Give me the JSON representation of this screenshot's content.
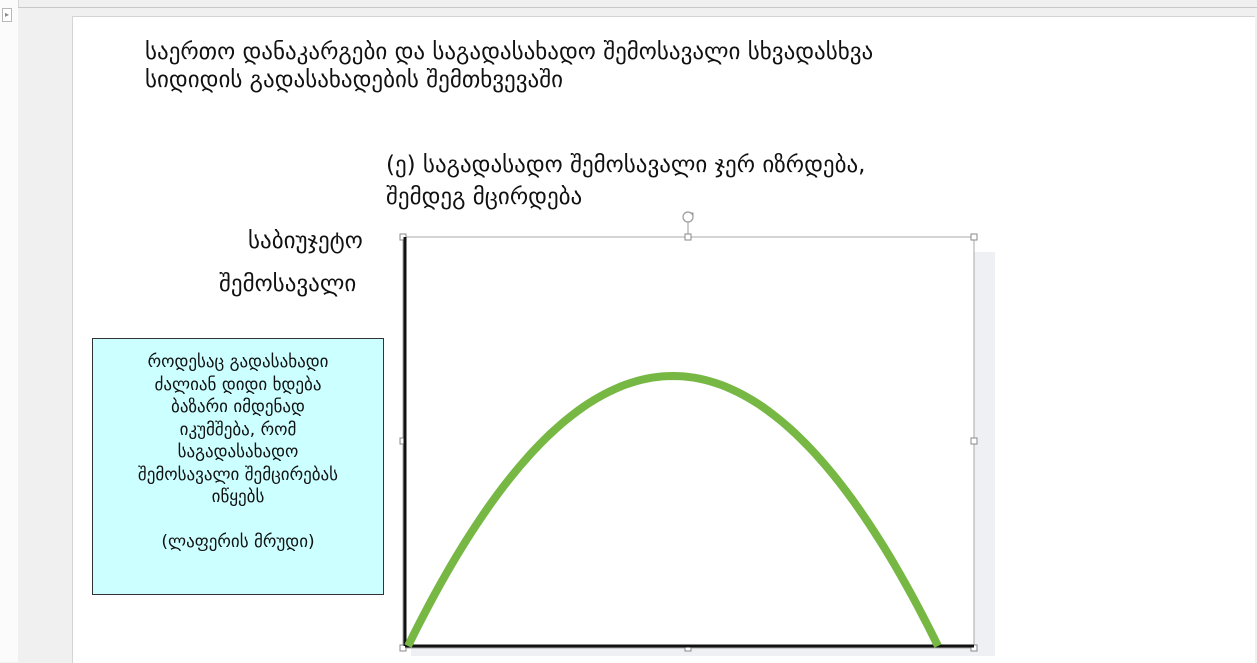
{
  "slide": {
    "title_lines": [
      "საერთო დანაკარგები და საგადასახადო შემოსავალი სხვადასხვა",
      "სიდიდის გადასახადების შემთხვევაში"
    ],
    "subtitle_lines": [
      "(ე) საგადასადო შემოსავალი ჯერ იზრდება,",
      "შემდეგ მცირდება"
    ],
    "ylabel_lines": [
      "საბიუჯეტო",
      "შემოსავალი"
    ],
    "note_lines": [
      "როდესაც გადასახადი",
      "ძალიან დიდი ხდება",
      "ბაზარი იმდენად",
      "იკუმშება, რომ",
      "საგადასახადო",
      "შემოსავალი შემცირებას",
      "იწყებს"
    ],
    "note_footer": "(ლაფერის მრუდი)"
  },
  "colors": {
    "curve": "#76b843",
    "note_background": "#ccffff",
    "slide_background": "#ffffff"
  },
  "chart_data": {
    "type": "line",
    "title": "",
    "xlabel": "",
    "ylabel": "საბიუჯეტო შემოსავალი",
    "xlim": [
      0,
      1
    ],
    "ylim": [
      0,
      1
    ],
    "grid": false,
    "series": [
      {
        "x": [
          0,
          0.1,
          0.2,
          0.3,
          0.4,
          0.5,
          0.6,
          0.7,
          0.8,
          0.9,
          1.0
        ],
        "values": [
          0,
          0.36,
          0.64,
          0.84,
          0.96,
          1.0,
          0.96,
          0.84,
          0.64,
          0.36,
          0
        ]
      }
    ]
  }
}
